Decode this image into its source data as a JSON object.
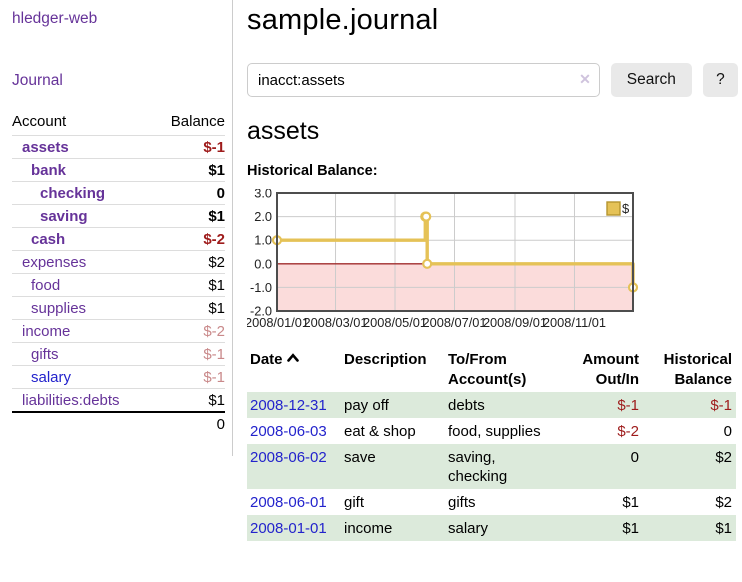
{
  "colors": {
    "link_purple": "#663399",
    "link_blue": "#2323cc",
    "negative_strong": "#9e1b1b",
    "negative_muted": "#c9898a",
    "row_stripe_green": "#dceadb",
    "button_bg": "#e9e9e9"
  },
  "sidebar": {
    "brand": "hledger-web",
    "journal_label": "Journal",
    "accounts": {
      "header_account": "Account",
      "header_balance": "Balance",
      "rows": [
        {
          "name": "assets",
          "indent": 1,
          "bold": true,
          "balance": "$-1",
          "balance_tone": "negative-strong",
          "link_tone": "visited"
        },
        {
          "name": "bank",
          "indent": 2,
          "bold": true,
          "balance": "$1",
          "balance_tone": "normal",
          "link_tone": "visited"
        },
        {
          "name": "checking",
          "indent": 3,
          "bold": true,
          "balance": "0",
          "balance_tone": "normal",
          "link_tone": "visited"
        },
        {
          "name": "saving",
          "indent": 3,
          "bold": true,
          "balance": "$1",
          "balance_tone": "normal",
          "link_tone": "visited"
        },
        {
          "name": "cash",
          "indent": 2,
          "bold": true,
          "balance": "$-2",
          "balance_tone": "negative-strong",
          "link_tone": "visited"
        },
        {
          "name": "expenses",
          "indent": 1,
          "bold": false,
          "balance": "$2",
          "balance_tone": "normal",
          "link_tone": "visited"
        },
        {
          "name": "food",
          "indent": 2,
          "bold": false,
          "balance": "$1",
          "balance_tone": "normal",
          "link_tone": "visited"
        },
        {
          "name": "supplies",
          "indent": 2,
          "bold": false,
          "balance": "$1",
          "balance_tone": "normal",
          "link_tone": "visited"
        },
        {
          "name": "income",
          "indent": 1,
          "bold": false,
          "balance": "$-2",
          "balance_tone": "negative-muted",
          "link_tone": "visited"
        },
        {
          "name": "gifts",
          "indent": 2,
          "bold": false,
          "balance": "$-1",
          "balance_tone": "negative-muted",
          "link_tone": "visited"
        },
        {
          "name": "salary",
          "indent": 2,
          "bold": false,
          "balance": "$-1",
          "balance_tone": "negative-muted",
          "link_tone": "unvisited"
        },
        {
          "name": "liabilities:debts",
          "indent": 1,
          "bold": false,
          "balance": "$1",
          "balance_tone": "normal",
          "link_tone": "visited"
        }
      ],
      "total": "0"
    }
  },
  "header": {
    "title": "sample.journal"
  },
  "search": {
    "query": "inacct:assets",
    "clear_icon": "✕",
    "button_label": "Search",
    "help_label": "?"
  },
  "account_page": {
    "heading": "assets",
    "chart_label": "Historical Balance:"
  },
  "chart_data": {
    "type": "line",
    "step": true,
    "title": "Historical Balance:",
    "series": [
      {
        "name": "$",
        "points": [
          [
            "2008-01-01",
            1.0
          ],
          [
            "2008-06-01",
            2.0
          ],
          [
            "2008-06-02",
            2.0
          ],
          [
            "2008-06-03",
            0.0
          ],
          [
            "2008-12-31",
            -1.0
          ]
        ]
      }
    ],
    "x_range": [
      "2008-01-01",
      "2008-12-31"
    ],
    "ylim": [
      -2.0,
      3.0
    ],
    "yticks": [
      3.0,
      2.0,
      1.0,
      0.0,
      -1.0,
      -2.0
    ],
    "xticks": [
      {
        "date": "2008-01-01",
        "label": "2008/01/01"
      },
      {
        "date": "2008-03-01",
        "label": "2008/03/01"
      },
      {
        "date": "2008-05-01",
        "label": "2008/05/01"
      },
      {
        "date": "2008-07-01",
        "label": "2008/07/01"
      },
      {
        "date": "2008-09-01",
        "label": "2008/09/01"
      },
      {
        "date": "2008-11-01",
        "label": "2008/11/01"
      }
    ],
    "legend": {
      "label": "$",
      "position": "top-right"
    },
    "grid": true,
    "negative_region_shaded": true,
    "colors": {
      "line": "#e5c257",
      "marker_fill": "#ffffff",
      "negative_fill": "#fbdcdb",
      "zero_line": "#a02c2c",
      "grid": "#cccccc",
      "border": "#4d4d4d",
      "legend_border": "#b5952f"
    }
  },
  "register": {
    "header": {
      "date": "Date",
      "description": "Description",
      "accounts": "To/From Account(s)",
      "amount": "Amount Out/In",
      "balance": "Historical Balance"
    },
    "sort_icon": "chevron-up",
    "rows": [
      {
        "date": "2008-12-31",
        "description": "pay off",
        "accounts": "debts",
        "amount": "$-1",
        "amount_tone": "negative",
        "balance": "$-1",
        "balance_tone": "negative"
      },
      {
        "date": "2008-06-03",
        "description": "eat & shop",
        "accounts": "food, supplies",
        "amount": "$-2",
        "amount_tone": "negative",
        "balance": "0",
        "balance_tone": "normal"
      },
      {
        "date": "2008-06-02",
        "description": "save",
        "accounts": "saving, checking",
        "amount": "0",
        "amount_tone": "normal",
        "balance": "$2",
        "balance_tone": "normal"
      },
      {
        "date": "2008-06-01",
        "description": "gift",
        "accounts": "gifts",
        "amount": "$1",
        "amount_tone": "normal",
        "balance": "$2",
        "balance_tone": "normal"
      },
      {
        "date": "2008-01-01",
        "description": "income",
        "accounts": "salary",
        "amount": "$1",
        "amount_tone": "normal",
        "balance": "$1",
        "balance_tone": "normal"
      }
    ]
  }
}
